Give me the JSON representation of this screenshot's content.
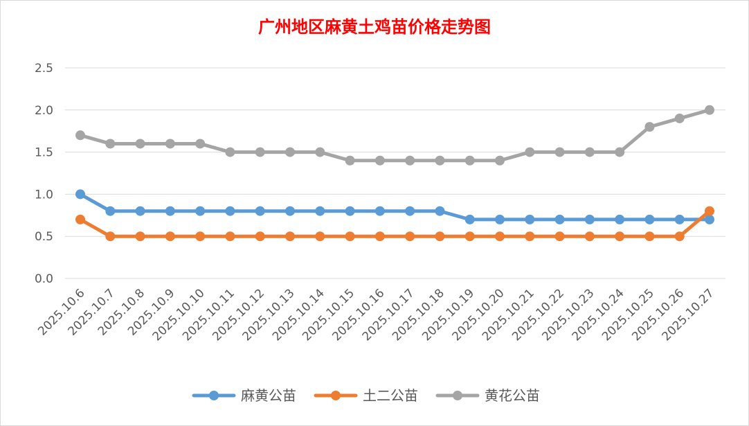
{
  "chart_data": {
    "type": "line",
    "title": "广州地区麻黄土鸡苗价格走势图",
    "xlabel": "",
    "ylabel": "",
    "ylim": [
      0,
      2.5
    ],
    "yticks": [
      "0.0",
      "0.5",
      "1.0",
      "1.5",
      "2.0",
      "2.5"
    ],
    "grid": true,
    "legend_position": "bottom",
    "categories": [
      "2025.10.6",
      "2025.10.7",
      "2025.10.8",
      "2025.10.9",
      "2025.10.10",
      "2025.10.11",
      "2025.10.12",
      "2025.10.13",
      "2025.10.14",
      "2025.10.15",
      "2025.10.16",
      "2025.10.17",
      "2025.10.18",
      "2025.10.19",
      "2025.10.20",
      "2025.10.21",
      "2025.10.22",
      "2025.10.23",
      "2025.10.24",
      "2025.10.25",
      "2025.10.26",
      "2025.10.27"
    ],
    "series": [
      {
        "name": "麻黄公苗",
        "color": "#5b9bd5",
        "values": [
          1.0,
          0.8,
          0.8,
          0.8,
          0.8,
          0.8,
          0.8,
          0.8,
          0.8,
          0.8,
          0.8,
          0.8,
          0.8,
          0.7,
          0.7,
          0.7,
          0.7,
          0.7,
          0.7,
          0.7,
          0.7,
          0.7
        ]
      },
      {
        "name": "土二公苗",
        "color": "#ed7d31",
        "values": [
          0.7,
          0.5,
          0.5,
          0.5,
          0.5,
          0.5,
          0.5,
          0.5,
          0.5,
          0.5,
          0.5,
          0.5,
          0.5,
          0.5,
          0.5,
          0.5,
          0.5,
          0.5,
          0.5,
          0.5,
          0.5,
          0.8
        ]
      },
      {
        "name": "黄花公苗",
        "color": "#a5a5a5",
        "values": [
          1.7,
          1.6,
          1.6,
          1.6,
          1.6,
          1.5,
          1.5,
          1.5,
          1.5,
          1.4,
          1.4,
          1.4,
          1.4,
          1.4,
          1.4,
          1.5,
          1.5,
          1.5,
          1.5,
          1.8,
          1.9,
          2.0
        ]
      }
    ]
  }
}
